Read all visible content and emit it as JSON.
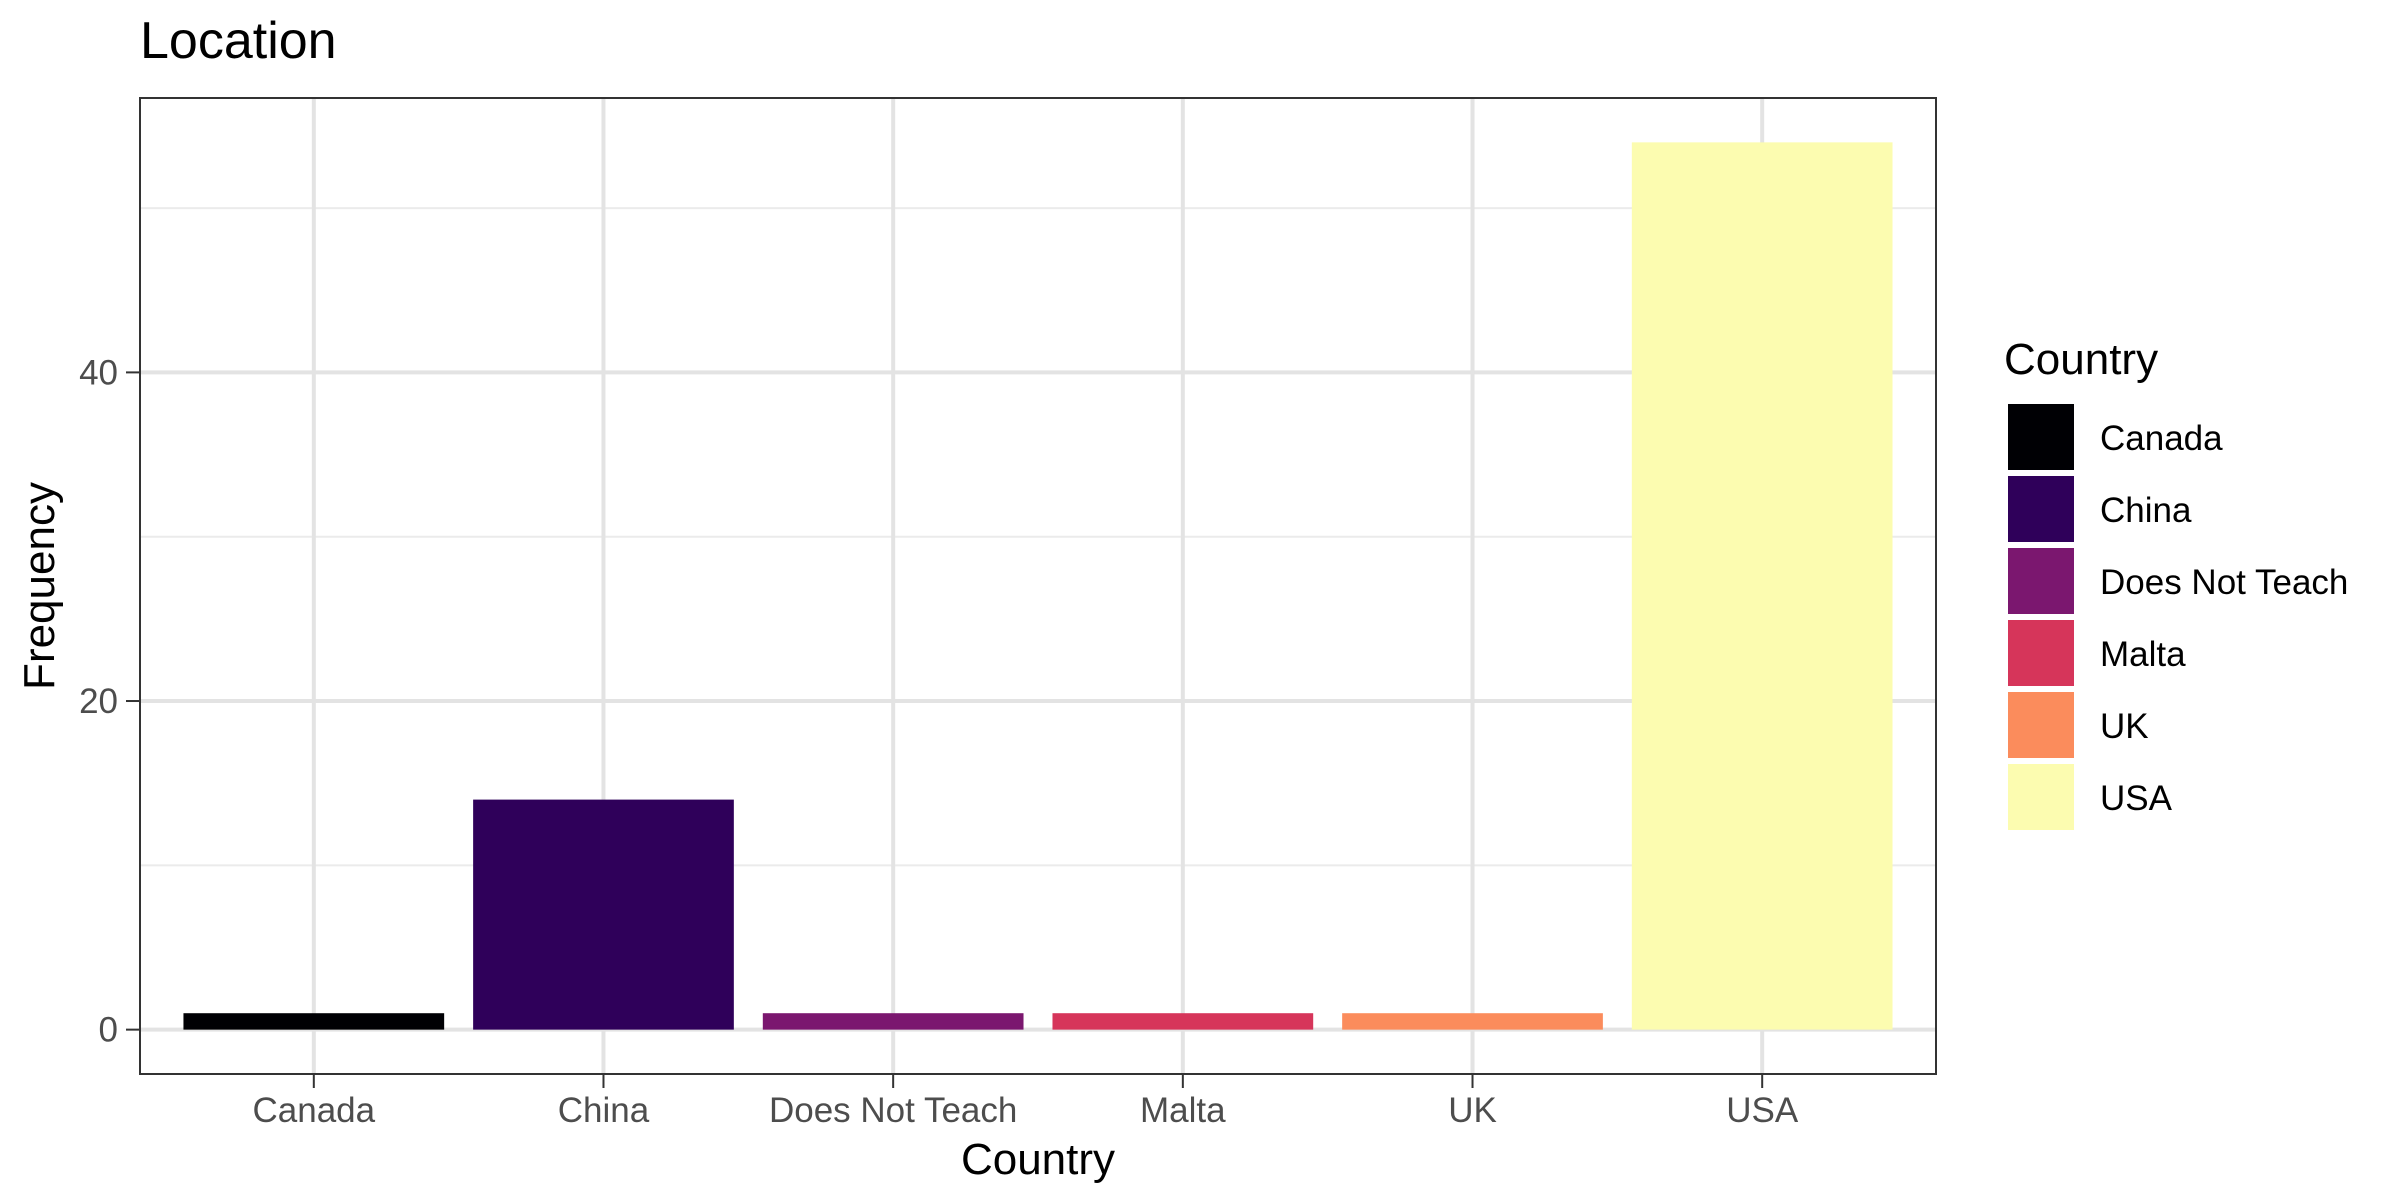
{
  "chart_data": {
    "type": "bar",
    "title": "Location",
    "xlabel": "Country",
    "ylabel": "Frequency",
    "categories": [
      "Canada",
      "China",
      "Does Not Teach",
      "Malta",
      "UK",
      "USA"
    ],
    "values": [
      1,
      14,
      1,
      1,
      1,
      54
    ],
    "ylim": [
      -2.7,
      56.7
    ],
    "yticks": [
      0,
      20,
      40
    ],
    "grid": true,
    "legend": {
      "title": "Country",
      "placement": "right",
      "entries": [
        "Canada",
        "China",
        "Does Not Teach",
        "Malta",
        "UK",
        "USA"
      ]
    },
    "colors": [
      "#000004",
      "#2f005a",
      "#7b176f",
      "#d6355a",
      "#fb8c5c",
      "#fcfcb0"
    ]
  }
}
